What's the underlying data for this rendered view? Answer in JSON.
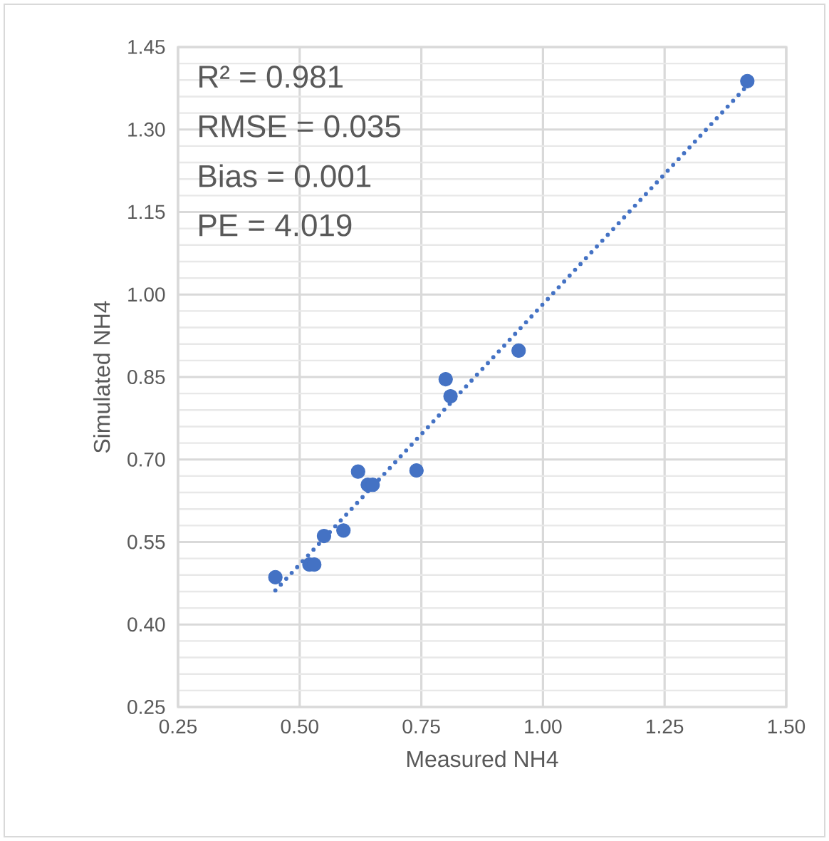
{
  "chart_data": {
    "type": "scatter",
    "xlabel": "Measured NH4",
    "ylabel": "Simulated NH4",
    "xlim": [
      0.25,
      1.5
    ],
    "xticks": [
      {
        "value": 0.25,
        "label": "0.25"
      },
      {
        "value": 0.5,
        "label": "0.50"
      },
      {
        "value": 0.75,
        "label": "0.75"
      },
      {
        "value": 1.0,
        "label": "1.00"
      },
      {
        "value": 1.25,
        "label": "1.25"
      },
      {
        "value": 1.5,
        "label": "1.50"
      }
    ],
    "ylim": [
      0.25,
      1.45
    ],
    "yticks": [
      {
        "value": 0.25,
        "label": "0.25"
      },
      {
        "value": 0.4,
        "label": "0.40"
      },
      {
        "value": 0.55,
        "label": "0.55"
      },
      {
        "value": 0.7,
        "label": "0.70"
      },
      {
        "value": 0.85,
        "label": "0.85"
      },
      {
        "value": 1.0,
        "label": "1.00"
      },
      {
        "value": 1.15,
        "label": "1.15"
      },
      {
        "value": 1.3,
        "label": "1.30"
      },
      {
        "value": 1.45,
        "label": "1.45"
      }
    ],
    "grid": true,
    "marker": "circle",
    "series": [
      {
        "color": "#4472c4",
        "x": [
          0.45,
          0.52,
          0.53,
          0.55,
          0.59,
          0.62,
          0.64,
          0.65,
          0.74,
          0.8,
          0.81,
          0.95,
          1.42
        ],
        "values": [
          0.486,
          0.509,
          0.509,
          0.561,
          0.571,
          0.678,
          0.654,
          0.654,
          0.68,
          0.846,
          0.815,
          0.898,
          1.388
        ]
      },
      {
        "type": "line",
        "color": "#4472c4",
        "line_style": "dotted",
        "marker": "none",
        "x": [
          0.45,
          1.42
        ],
        "values": [
          0.462,
          1.38
        ]
      }
    ],
    "annotations": [
      "R² = 0.981",
      "RMSE = 0.035",
      "Bias = 0.001",
      "PE = 4.019"
    ]
  }
}
